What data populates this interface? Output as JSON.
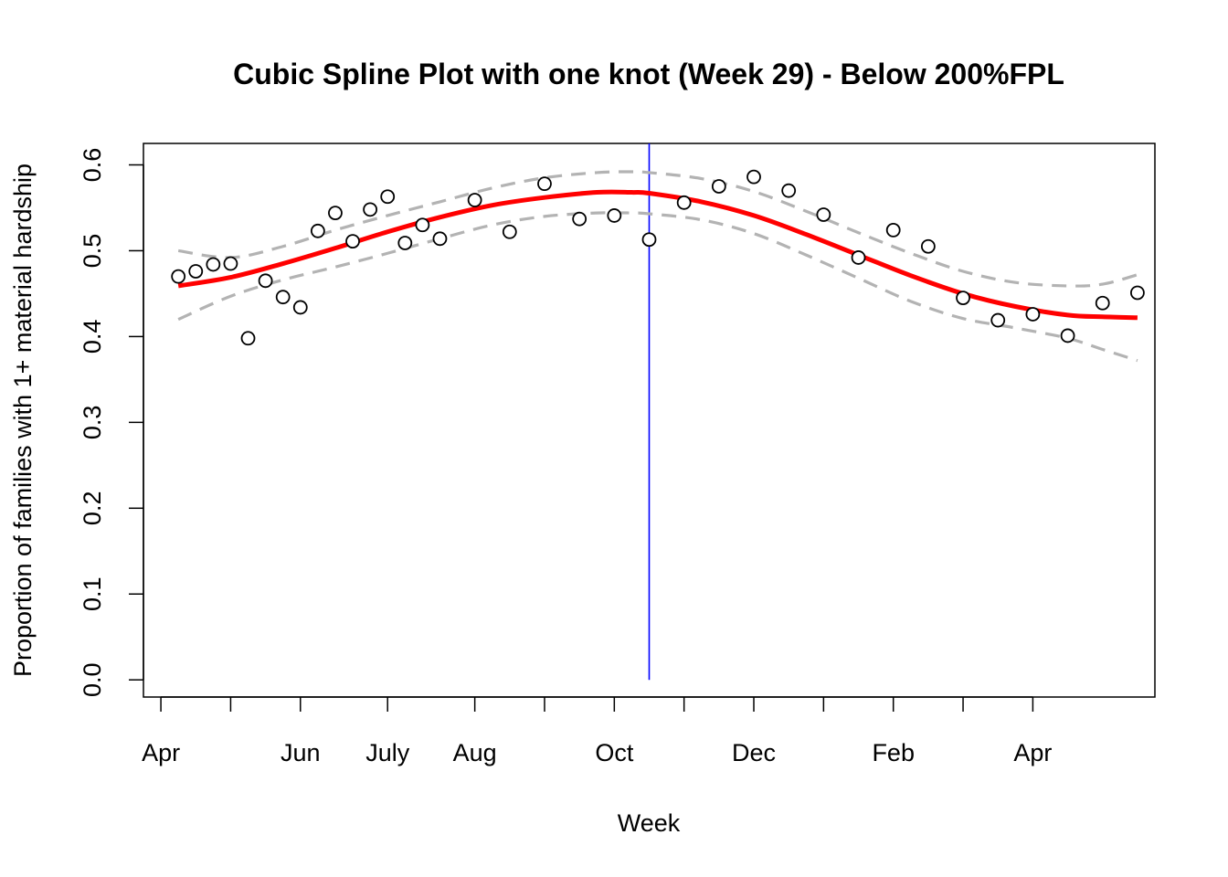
{
  "chart_data": {
    "type": "scatter",
    "title": "Cubic Spline Plot with one knot (Week 29) - Below 200%FPL",
    "xlabel": "Week",
    "ylabel": "Proportion of families with 1+ material hardship",
    "xlim": [
      0,
      58
    ],
    "ylim": [
      -0.02,
      0.625
    ],
    "x_ticks": [
      {
        "value": 1,
        "label": "Apr"
      },
      {
        "value": 5,
        "label": ""
      },
      {
        "value": 9,
        "label": "Jun"
      },
      {
        "value": 14,
        "label": "July"
      },
      {
        "value": 19,
        "label": "Aug"
      },
      {
        "value": 23,
        "label": ""
      },
      {
        "value": 27,
        "label": "Oct"
      },
      {
        "value": 31,
        "label": ""
      },
      {
        "value": 35,
        "label": "Dec"
      },
      {
        "value": 39,
        "label": ""
      },
      {
        "value": 43,
        "label": "Feb"
      },
      {
        "value": 47,
        "label": ""
      },
      {
        "value": 51,
        "label": "Apr"
      }
    ],
    "y_ticks": [
      {
        "value": 0.0,
        "label": "0.0"
      },
      {
        "value": 0.1,
        "label": "0.1"
      },
      {
        "value": 0.2,
        "label": "0.2"
      },
      {
        "value": 0.3,
        "label": "0.3"
      },
      {
        "value": 0.4,
        "label": "0.4"
      },
      {
        "value": 0.5,
        "label": "0.5"
      },
      {
        "value": 0.6,
        "label": "0.6"
      }
    ],
    "knot": 29,
    "points": [
      {
        "x": 2,
        "y": 0.47
      },
      {
        "x": 3,
        "y": 0.476
      },
      {
        "x": 4,
        "y": 0.484
      },
      {
        "x": 5,
        "y": 0.485
      },
      {
        "x": 6,
        "y": 0.398
      },
      {
        "x": 7,
        "y": 0.465
      },
      {
        "x": 8,
        "y": 0.446
      },
      {
        "x": 9,
        "y": 0.434
      },
      {
        "x": 10,
        "y": 0.523
      },
      {
        "x": 11,
        "y": 0.544
      },
      {
        "x": 12,
        "y": 0.511
      },
      {
        "x": 13,
        "y": 0.548
      },
      {
        "x": 14,
        "y": 0.563
      },
      {
        "x": 15,
        "y": 0.509
      },
      {
        "x": 16,
        "y": 0.53
      },
      {
        "x": 17,
        "y": 0.514
      },
      {
        "x": 19,
        "y": 0.559
      },
      {
        "x": 21,
        "y": 0.522
      },
      {
        "x": 23,
        "y": 0.578
      },
      {
        "x": 25,
        "y": 0.537
      },
      {
        "x": 27,
        "y": 0.541
      },
      {
        "x": 29,
        "y": 0.513
      },
      {
        "x": 31,
        "y": 0.556
      },
      {
        "x": 33,
        "y": 0.575
      },
      {
        "x": 35,
        "y": 0.586
      },
      {
        "x": 37,
        "y": 0.57
      },
      {
        "x": 39,
        "y": 0.542
      },
      {
        "x": 41,
        "y": 0.492
      },
      {
        "x": 43,
        "y": 0.524
      },
      {
        "x": 45,
        "y": 0.505
      },
      {
        "x": 47,
        "y": 0.445
      },
      {
        "x": 49,
        "y": 0.419
      },
      {
        "x": 51,
        "y": 0.426
      },
      {
        "x": 53,
        "y": 0.401
      },
      {
        "x": 55,
        "y": 0.439
      },
      {
        "x": 57,
        "y": 0.451
      }
    ],
    "fit": {
      "x": [
        2,
        5,
        8,
        11,
        14,
        17,
        20,
        23,
        26,
        28,
        29,
        32,
        35,
        38,
        41,
        44,
        47,
        50,
        53,
        55,
        57
      ],
      "y": [
        0.459,
        0.469,
        0.485,
        0.503,
        0.522,
        0.539,
        0.553,
        0.562,
        0.568,
        0.568,
        0.567,
        0.557,
        0.541,
        0.519,
        0.495,
        0.471,
        0.45,
        0.435,
        0.425,
        0.423,
        0.422
      ]
    },
    "upper": {
      "x": [
        2,
        5,
        8,
        11,
        14,
        17,
        20,
        23,
        26,
        28,
        29,
        32,
        35,
        38,
        41,
        44,
        47,
        50,
        53,
        55,
        57
      ],
      "y": [
        0.5,
        0.492,
        0.505,
        0.524,
        0.541,
        0.557,
        0.573,
        0.585,
        0.591,
        0.592,
        0.591,
        0.584,
        0.569,
        0.546,
        0.521,
        0.497,
        0.476,
        0.463,
        0.459,
        0.461,
        0.472
      ]
    },
    "lower": {
      "x": [
        2,
        5,
        8,
        11,
        14,
        17,
        20,
        23,
        26,
        28,
        29,
        32,
        35,
        38,
        41,
        44,
        47,
        50,
        53,
        55,
        57
      ],
      "y": [
        0.42,
        0.447,
        0.466,
        0.481,
        0.497,
        0.514,
        0.53,
        0.54,
        0.544,
        0.544,
        0.543,
        0.536,
        0.52,
        0.495,
        0.468,
        0.441,
        0.421,
        0.41,
        0.398,
        0.385,
        0.372
      ]
    },
    "colors": {
      "fit": "#ff0000",
      "ci": "#b3b3b3",
      "knot": "#0000ff",
      "points": "#000000"
    }
  }
}
